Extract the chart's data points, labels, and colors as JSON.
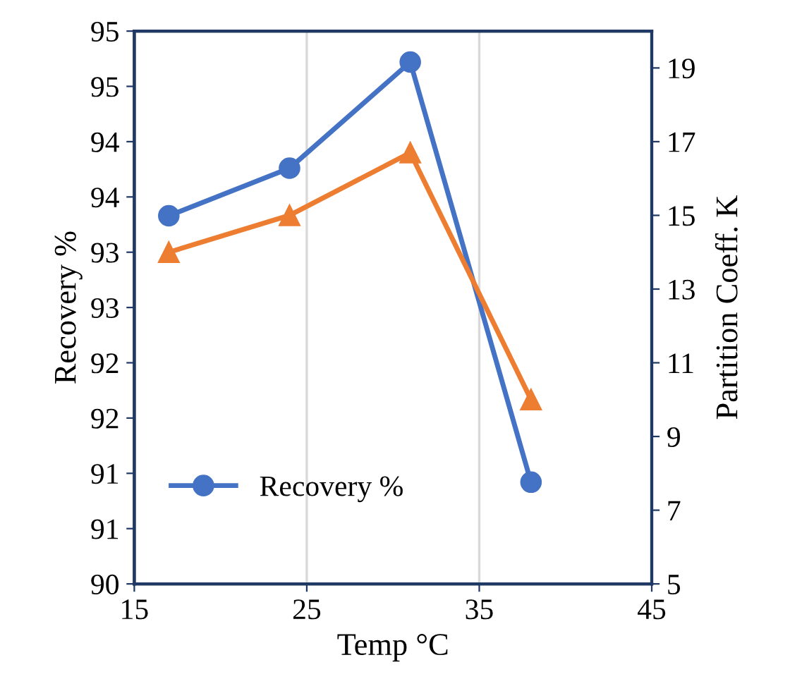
{
  "chart_data": {
    "type": "line",
    "xlabel": "Temp °C",
    "ylabel": "Recovery %",
    "y2label": "Partition Coeff. K",
    "x": [
      17,
      24,
      31,
      38
    ],
    "series": [
      {
        "name": "Recovery %",
        "color": "#4472c4",
        "values": [
          93.33,
          93.76,
          94.72,
          90.92
        ],
        "marker": "circle"
      },
      {
        "color": "#ed7d31",
        "values": [
          14,
          15,
          16.7,
          10
        ],
        "axis": "y2",
        "marker": "triangle"
      }
    ],
    "xlim": [
      15,
      45
    ],
    "xticks": [
      15,
      25,
      35,
      45
    ],
    "ylim": [
      90,
      95
    ],
    "yticks": [
      {
        "value": 90,
        "label": "90"
      },
      {
        "value": 90.5,
        "label": "91"
      },
      {
        "value": 91,
        "label": "91"
      },
      {
        "value": 91.5,
        "label": "92"
      },
      {
        "value": 92,
        "label": "92"
      },
      {
        "value": 92.5,
        "label": "93"
      },
      {
        "value": 93,
        "label": "93"
      },
      {
        "value": 93.5,
        "label": "94"
      },
      {
        "value": 94,
        "label": "94"
      },
      {
        "value": 94.5,
        "label": "95"
      },
      {
        "value": 95,
        "label": "95"
      }
    ],
    "y2lim": [
      5,
      20
    ],
    "y2ticks": [
      5,
      7,
      9,
      11,
      13,
      15,
      17,
      19
    ],
    "grid": "x",
    "legend": "bottom left",
    "line_style": "solid"
  }
}
